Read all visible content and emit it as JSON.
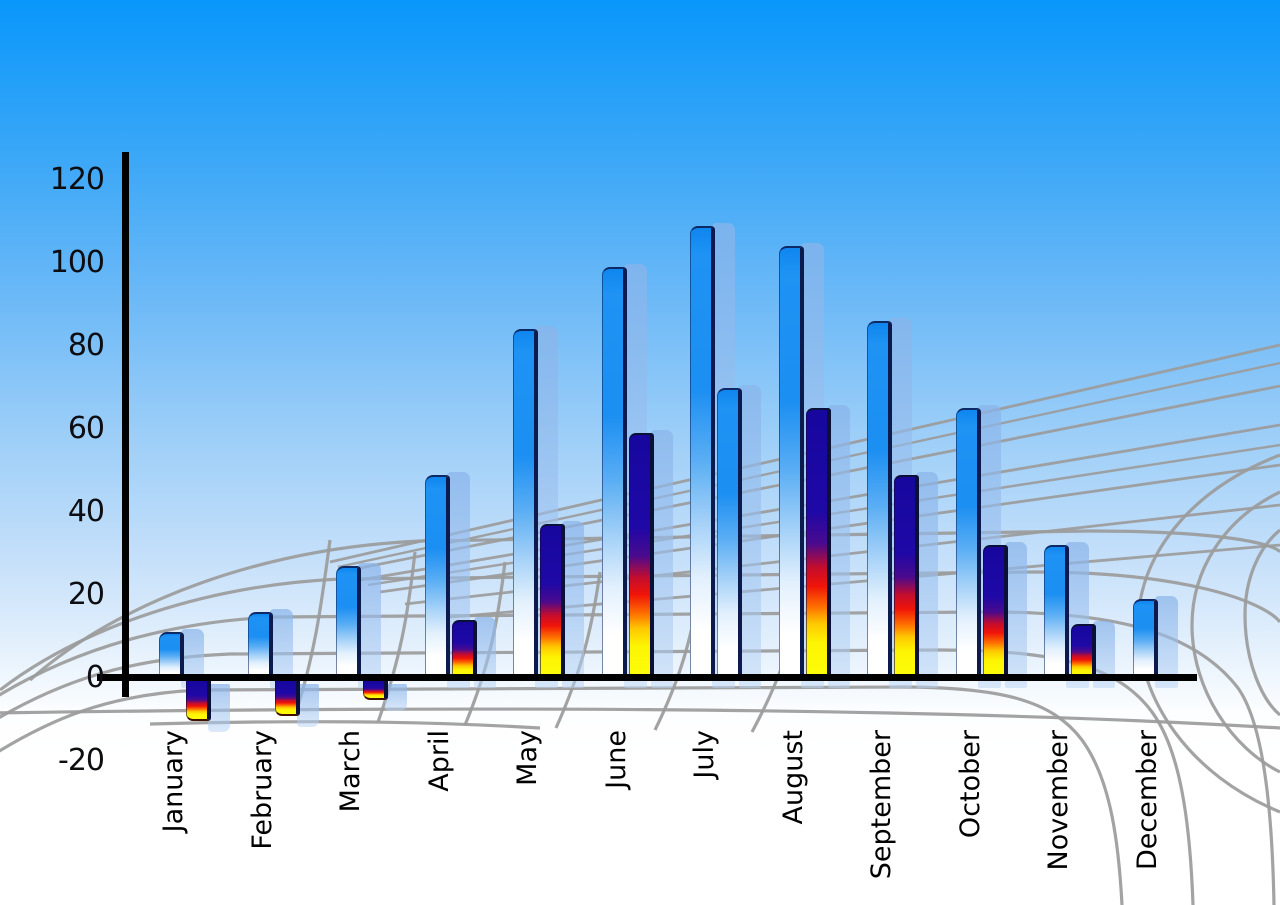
{
  "chart_data": {
    "type": "bar",
    "title": "",
    "xlabel": "",
    "ylabel": "",
    "categories": [
      "January",
      "February",
      "March",
      "April",
      "May",
      "June",
      "July",
      "August",
      "September",
      "October",
      "November",
      "December"
    ],
    "series": [
      {
        "name": "primary-blue-bars",
        "values": [
          11,
          16,
          27,
          49,
          84,
          99,
          109,
          104,
          86,
          65,
          32,
          19
        ]
      },
      {
        "name": "secondary-rainbow-bars",
        "values": [
          -10,
          -9,
          -5,
          14,
          37,
          59,
          70,
          65,
          49,
          32,
          13,
          null
        ]
      }
    ],
    "secondary_style_overrides": {
      "July": "blue-gradient"
    },
    "yticks": [
      120,
      100,
      80,
      60,
      40,
      20,
      0,
      -20
    ],
    "ylim": [
      -20,
      120
    ],
    "legend": "none",
    "grid": "decorative gray perspective mesh over sky gradient"
  },
  "colors": {
    "sky_top": "#0997fb",
    "sky_bottom": "#ffffff",
    "bar_blue_top": "#1c8ff2",
    "bar_blue_bottom": "#ffffff",
    "bar_edge_dark": "#0c1a4d",
    "rainbow_navy": "#1e08a6",
    "rainbow_red": "#f01408",
    "rainbow_yellow": "#fdfd0a",
    "shadow_bar": "#a0c4f0",
    "grid_line": "#9b9b9b",
    "axis": "#000000",
    "text": "#000000"
  }
}
